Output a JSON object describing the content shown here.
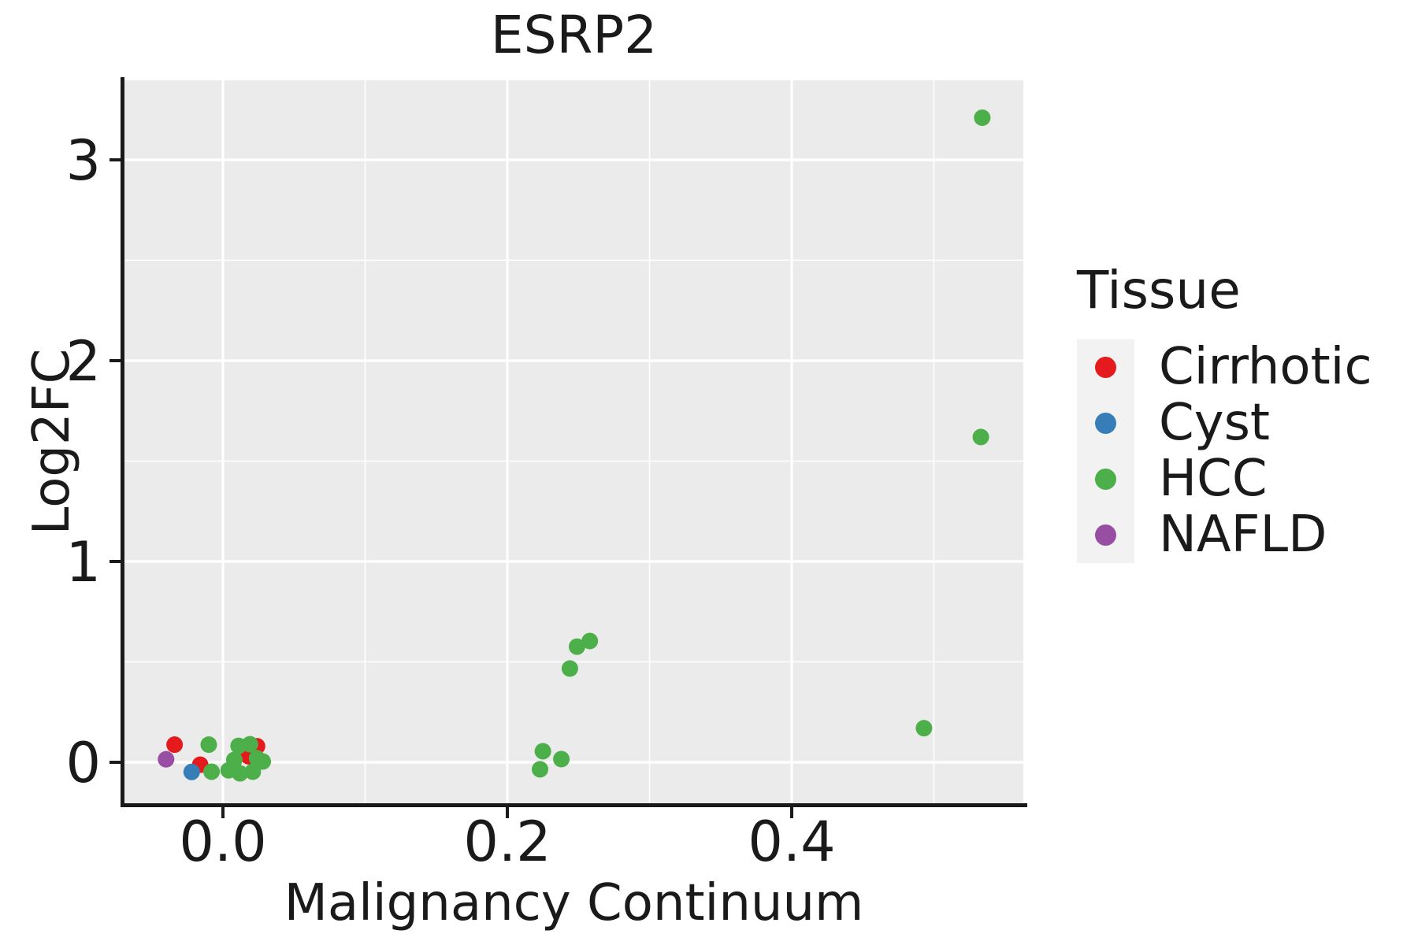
{
  "chart_data": {
    "type": "scatter",
    "title": "ESRP2",
    "xlabel": "Malignancy Continuum",
    "ylabel": "Log2FC",
    "xlim": [
      -0.069,
      0.563
    ],
    "ylim": [
      -0.204,
      3.404
    ],
    "grid": true,
    "x_ticks": {
      "values": [
        0.0,
        0.2,
        0.4
      ],
      "labels": [
        "0.0",
        "0.2",
        "0.4"
      ]
    },
    "y_ticks": {
      "values": [
        0,
        1,
        2,
        3
      ],
      "labels": [
        "0",
        "1",
        "2",
        "3"
      ]
    },
    "x_minor": [
      0.1,
      0.3,
      0.5
    ],
    "y_minor": [
      0.5,
      1.5,
      2.5
    ],
    "colors": {
      "panel_bg": "#EBEBEB",
      "grid": "#FFFFFF",
      "axis": "#1A1A1A",
      "text": "#1A1A1A",
      "legend_key_bg": "#F2F2F2"
    },
    "legend": {
      "title": "Tissue",
      "position": "right",
      "items": [
        {
          "label": "Cirrhotic",
          "color": "#E41A1C"
        },
        {
          "label": "Cyst",
          "color": "#377EB8"
        },
        {
          "label": "HCC",
          "color": "#4DAF4A"
        },
        {
          "label": "NAFLD",
          "color": "#984EA3"
        }
      ]
    },
    "series": [
      {
        "name": "Cirrhotic",
        "color": "#E41A1C",
        "points": [
          [
            -0.034,
            0.088
          ],
          [
            -0.016,
            -0.012
          ],
          [
            0.018,
            0.03
          ],
          [
            0.024,
            0.08
          ]
        ]
      },
      {
        "name": "NAFLD",
        "color": "#984EA3",
        "points": [
          [
            -0.04,
            0.015
          ]
        ]
      },
      {
        "name": "Cyst",
        "color": "#377EB8",
        "points": [
          [
            -0.022,
            -0.048
          ]
        ]
      },
      {
        "name": "HCC",
        "color": "#4DAF4A",
        "points": [
          [
            -0.01,
            0.088
          ],
          [
            -0.008,
            -0.047
          ],
          [
            0.004,
            -0.04
          ],
          [
            0.008,
            0.012
          ],
          [
            0.011,
            0.082
          ],
          [
            0.012,
            -0.055
          ],
          [
            0.019,
            0.09
          ],
          [
            0.021,
            -0.047
          ],
          [
            0.024,
            0.02
          ],
          [
            0.028,
            0.004
          ],
          [
            0.223,
            -0.035
          ],
          [
            0.225,
            0.055
          ],
          [
            0.238,
            0.016
          ],
          [
            0.244,
            0.467
          ],
          [
            0.249,
            0.576
          ],
          [
            0.258,
            0.604
          ],
          [
            0.493,
            0.17
          ],
          [
            0.533,
            1.62
          ],
          [
            0.534,
            3.21
          ]
        ]
      }
    ]
  }
}
